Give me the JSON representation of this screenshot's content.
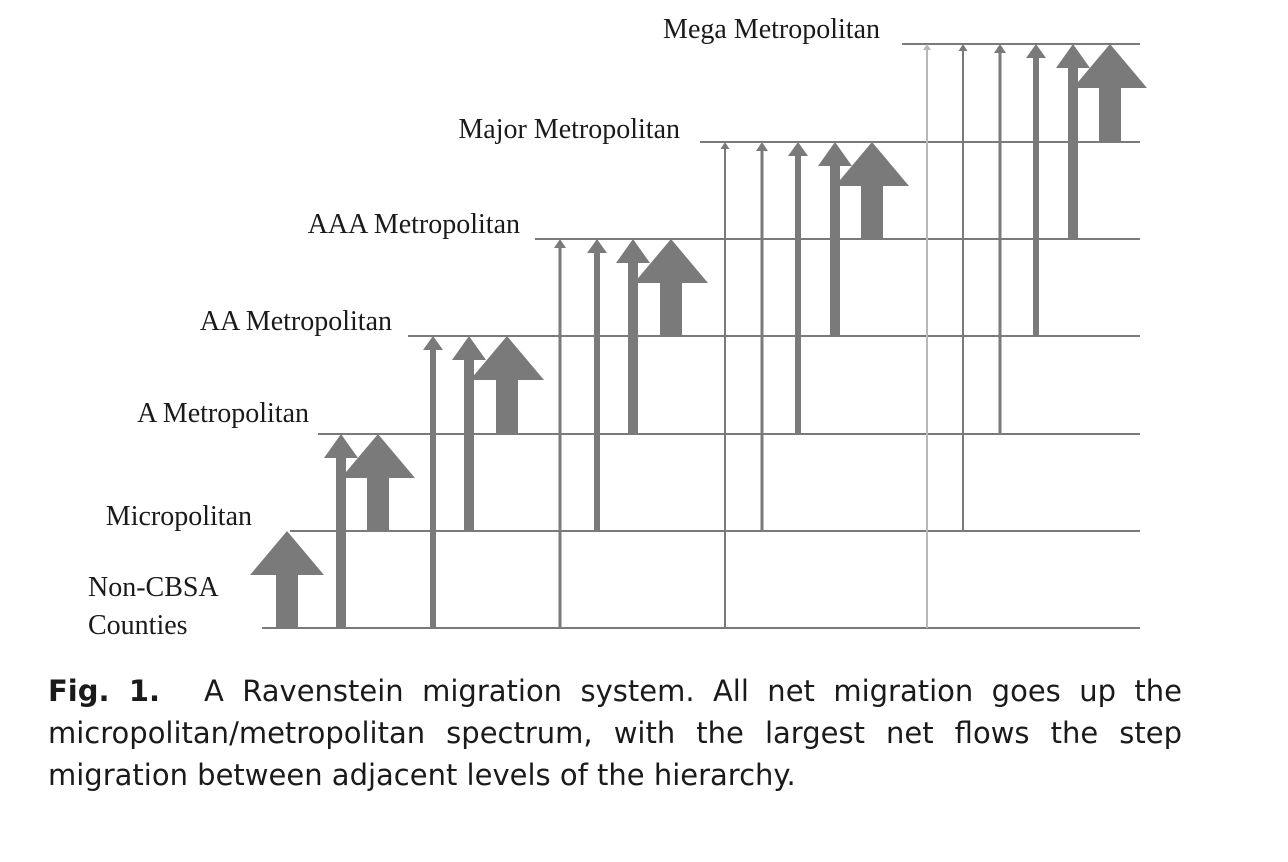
{
  "figure": {
    "levels": [
      {
        "label_lines": [
          "Non-CBSA",
          "Counties"
        ]
      },
      {
        "label_lines": [
          "Micropolitan"
        ]
      },
      {
        "label_lines": [
          "A Metropolitan"
        ]
      },
      {
        "label_lines": [
          "AA Metropolitan"
        ]
      },
      {
        "label_lines": [
          "AAA Metropolitan"
        ]
      },
      {
        "label_lines": [
          "Major Metropolitan"
        ]
      },
      {
        "label_lines": [
          "Mega Metropolitan"
        ]
      }
    ],
    "flows": [
      {
        "from": 0,
        "to": 1
      },
      {
        "from": 0,
        "to": 2
      },
      {
        "from": 1,
        "to": 2
      },
      {
        "from": 0,
        "to": 3
      },
      {
        "from": 1,
        "to": 3
      },
      {
        "from": 2,
        "to": 3
      },
      {
        "from": 0,
        "to": 4
      },
      {
        "from": 1,
        "to": 4
      },
      {
        "from": 2,
        "to": 4
      },
      {
        "from": 3,
        "to": 4
      },
      {
        "from": 0,
        "to": 5
      },
      {
        "from": 1,
        "to": 5
      },
      {
        "from": 2,
        "to": 5
      },
      {
        "from": 3,
        "to": 5
      },
      {
        "from": 4,
        "to": 5
      },
      {
        "from": 0,
        "to": 6
      },
      {
        "from": 1,
        "to": 6
      },
      {
        "from": 2,
        "to": 6
      },
      {
        "from": 3,
        "to": 6
      },
      {
        "from": 4,
        "to": 6
      },
      {
        "from": 5,
        "to": 6
      }
    ],
    "arrow_color": "#7a7a7a",
    "line_color": "#7a7a7a"
  },
  "caption": {
    "label": "Fig. 1.",
    "text": "A Ravenstein migration system. All net migration goes up the micropolitan/metropolitan spectrum, with the largest net flows the step migration between adjacent levels of the hierarchy."
  }
}
